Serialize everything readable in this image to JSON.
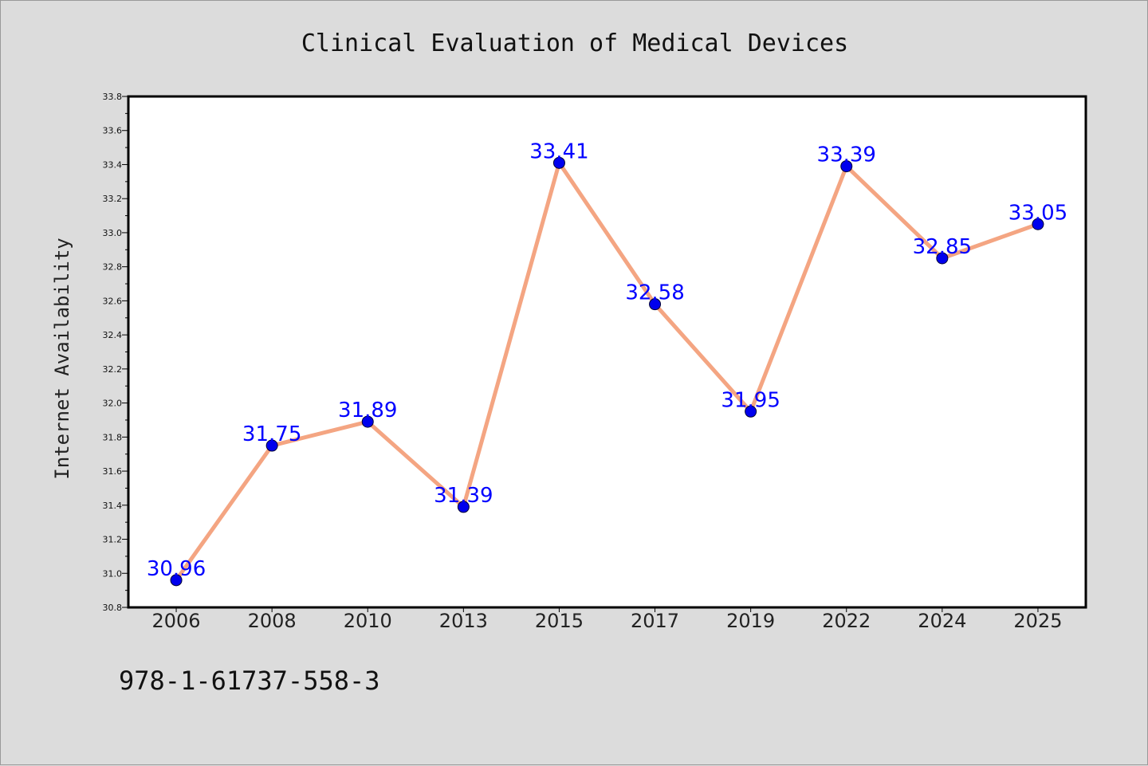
{
  "chart_data": {
    "type": "line",
    "title": "Clinical Evaluation of Medical Devices",
    "xlabel": "",
    "ylabel": "Internet Availability",
    "categories": [
      "2006",
      "2008",
      "2010",
      "2013",
      "2015",
      "2017",
      "2019",
      "2022",
      "2024",
      "2025"
    ],
    "series": [
      {
        "values": [
          30.96,
          31.75,
          31.89,
          31.39,
          33.41,
          32.58,
          31.95,
          33.39,
          32.85,
          33.05
        ],
        "line_color": "#f4a582",
        "marker_color": "#0000ee"
      }
    ],
    "data_labels": [
      "30.96",
      "31.75",
      "31.89",
      "31.39",
      "33.41",
      "32.58",
      "31.95",
      "33.39",
      "32.85",
      "33.05"
    ],
    "ylim": [
      30.8,
      33.8
    ],
    "yticks": [
      "30.8",
      "31.0",
      "31.2",
      "31.4",
      "31.6",
      "31.8",
      "32.0",
      "32.2",
      "32.4",
      "32.6",
      "32.8",
      "33.0",
      "33.2",
      "33.4",
      "33.6",
      "33.8"
    ],
    "grid": false,
    "legend": "none",
    "label_color": "#0000ff"
  },
  "footer": {
    "isbn": "978-1-61737-558-3"
  },
  "colors": {
    "background": "#dcdcdc",
    "plot_area": "#ffffff"
  }
}
